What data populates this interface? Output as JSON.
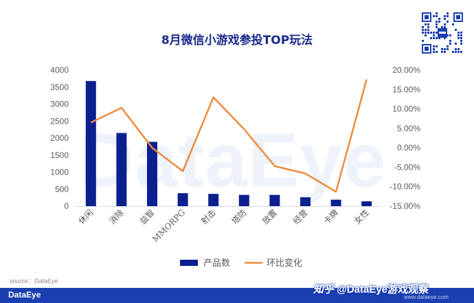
{
  "header": {
    "title": "8月微信小游戏参投TOP玩法"
  },
  "watermark": "DataEye",
  "source": "source：DataEye",
  "footer": {
    "logo": "DataEye",
    "zhihu_logo": "知乎",
    "account": "@DataEye游戏观察",
    "site": "www.dataeye.com"
  },
  "colors": {
    "bar": "#0c1f8f",
    "line": "#ef8a3c",
    "footer": "#1a3fb0",
    "title": "#1a2a8c"
  },
  "chart_data": {
    "type": "bar",
    "categories": [
      "休闲",
      "消除",
      "益智",
      "MMORPG",
      "射击",
      "塔防",
      "放置",
      "经营",
      "卡牌",
      "女性"
    ],
    "series": [
      {
        "name": "产品数",
        "type": "bar",
        "axis": "left",
        "values": [
          3680,
          2150,
          1890,
          380,
          360,
          330,
          330,
          260,
          190,
          140
        ]
      },
      {
        "name": "环比变化",
        "type": "line",
        "axis": "right",
        "values": [
          6.5,
          10.3,
          0.0,
          -6.0,
          13.0,
          4.8,
          -4.7,
          -6.6,
          -11.3,
          17.6
        ]
      }
    ],
    "y_left": {
      "min": 0,
      "max": 4000,
      "ticks": [
        0,
        500,
        1000,
        1500,
        2000,
        2500,
        3000,
        3500,
        4000
      ]
    },
    "y_right": {
      "min": -15,
      "max": 20,
      "ticks": [
        "-15.00%",
        "-10.00%",
        "-5.00%",
        "0.00%",
        "5.00%",
        "10.00%",
        "15.00%",
        "20.00%"
      ]
    },
    "grid": false,
    "legend": "bottom"
  }
}
